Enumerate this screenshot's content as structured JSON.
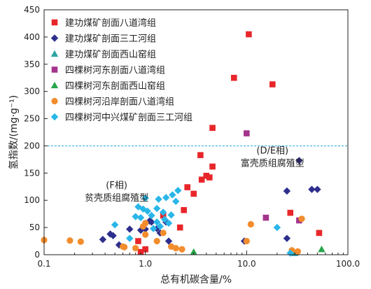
{
  "chart_data": {
    "type": "scatter",
    "xlabel": "总有机碳含量/%",
    "ylabel": "氢指数/(mg·g⁻¹)",
    "xscale": "log",
    "xlim": [
      0.1,
      100
    ],
    "ylim": [
      0,
      450
    ],
    "xticks": [
      0.1,
      1.0,
      10.0,
      100.0
    ],
    "xtick_labels": [
      "0.1",
      "1.0",
      "10.0",
      "100.0"
    ],
    "yticks": [
      0,
      50,
      100,
      150,
      200,
      250,
      300,
      350,
      400,
      450
    ],
    "ytick_labels": [
      "0",
      "50",
      "100",
      "150",
      "200",
      "250",
      "300",
      "350",
      "400",
      "450"
    ],
    "reference_line": {
      "y": 200,
      "color": "#29ABE2",
      "style": "dashed"
    },
    "annotations": [
      {
        "id": "de",
        "lines": [
          "(D/E相)",
          "富壳质组腐殖型"
        ],
        "x": 18,
        "y": 186
      },
      {
        "id": "f",
        "lines": [
          "(F相)",
          "贫壳质组腐殖型"
        ],
        "x": 0.52,
        "y": 122
      }
    ],
    "legend_position": "top-left",
    "series": [
      {
        "name": "建功煤矿剖面八道湾组",
        "marker": "square",
        "color": "#E8262A",
        "points": [
          [
            0.85,
            25
          ],
          [
            1.0,
            10
          ],
          [
            0.9,
            5
          ],
          [
            1.5,
            72
          ],
          [
            2.2,
            50
          ],
          [
            2.4,
            82
          ],
          [
            2.6,
            124
          ],
          [
            3.0,
            112
          ],
          [
            3.5,
            183
          ],
          [
            3.6,
            138
          ],
          [
            4.0,
            145
          ],
          [
            4.3,
            142
          ],
          [
            4.6,
            162
          ],
          [
            4.6,
            233
          ],
          [
            7.5,
            325
          ],
          [
            10.5,
            405
          ],
          [
            18,
            313
          ],
          [
            27,
            77
          ],
          [
            52,
            40
          ]
        ]
      },
      {
        "name": "建功煤矿剖面三工河组",
        "marker": "diamond",
        "color": "#2E2E8C",
        "points": [
          [
            0.38,
            28
          ],
          [
            0.45,
            38
          ],
          [
            0.48,
            35
          ],
          [
            0.55,
            18
          ],
          [
            0.7,
            47
          ],
          [
            0.9,
            45
          ],
          [
            1.0,
            47
          ],
          [
            1.1,
            62
          ],
          [
            1.15,
            60
          ],
          [
            1.3,
            48
          ],
          [
            1.4,
            40
          ],
          [
            1.6,
            60
          ],
          [
            1.7,
            25
          ],
          [
            9.5,
            25
          ],
          [
            25,
            30
          ],
          [
            25,
            117
          ],
          [
            33,
            173
          ],
          [
            44,
            120
          ],
          [
            50,
            120
          ]
        ]
      },
      {
        "name": "建功煤矿剖面西山窑组",
        "marker": "triangle",
        "color": "#2FA4A4",
        "points": [
          [
            30,
            3
          ]
        ]
      },
      {
        "name": "四棵树河东剖面八道湾组",
        "marker": "square",
        "color": "#A3358C",
        "points": [
          [
            10,
            223
          ],
          [
            15.5,
            68
          ],
          [
            33,
            63
          ]
        ]
      },
      {
        "name": "四棵树河东剖面西山窑组",
        "marker": "triangle",
        "color": "#27A54A",
        "points": [
          [
            3,
            5
          ],
          [
            55,
            10
          ]
        ]
      },
      {
        "name": "四棵树河沿岸剖面八道湾组",
        "marker": "circle",
        "color": "#F28C2C",
        "points": [
          [
            0.1,
            27
          ],
          [
            0.18,
            26
          ],
          [
            0.23,
            24
          ],
          [
            0.6,
            15
          ],
          [
            0.62,
            14
          ],
          [
            0.8,
            12
          ],
          [
            0.95,
            52
          ],
          [
            1.0,
            37
          ],
          [
            1.0,
            58
          ],
          [
            1.3,
            25
          ],
          [
            1.5,
            40
          ],
          [
            1.8,
            15
          ],
          [
            2.0,
            12
          ],
          [
            2.3,
            10
          ],
          [
            10,
            25
          ],
          [
            11,
            56
          ],
          [
            28,
            8
          ],
          [
            32,
            6
          ],
          [
            35,
            66
          ]
        ]
      },
      {
        "name": "四棵树河中兴煤矿剖面三工河组",
        "marker": "diamond",
        "color": "#29B6E8",
        "points": [
          [
            0.5,
            55
          ],
          [
            0.7,
            30
          ],
          [
            0.8,
            70
          ],
          [
            0.85,
            88
          ],
          [
            0.9,
            68
          ],
          [
            0.95,
            84
          ],
          [
            1.0,
            104
          ],
          [
            1.05,
            80
          ],
          [
            1.15,
            72
          ],
          [
            1.2,
            48
          ],
          [
            1.3,
            85
          ],
          [
            1.3,
            60
          ],
          [
            1.35,
            102
          ],
          [
            1.4,
            52
          ],
          [
            1.5,
            78
          ],
          [
            1.55,
            65
          ],
          [
            1.6,
            105
          ],
          [
            1.7,
            58
          ],
          [
            1.8,
            73
          ],
          [
            1.85,
            110
          ],
          [
            2.0,
            98
          ],
          [
            2.1,
            118
          ],
          [
            20,
            50
          ],
          [
            27,
            3
          ]
        ]
      }
    ]
  }
}
